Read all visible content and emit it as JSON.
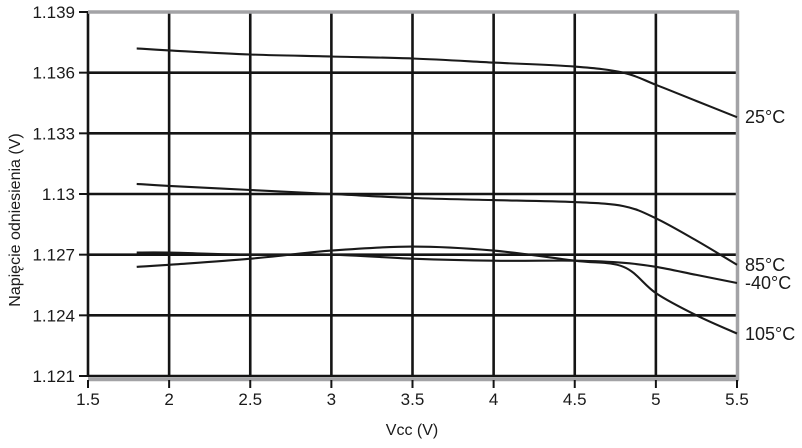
{
  "chart_data": {
    "type": "line",
    "title": "",
    "xlabel": "Vcc (V)",
    "ylabel": "Napięcie odniesienia (V)",
    "xlim": [
      1.5,
      5.5
    ],
    "ylim": [
      1.121,
      1.139
    ],
    "x_ticks": [
      1.5,
      2,
      2.5,
      3,
      3.5,
      4,
      4.5,
      5,
      5.5
    ],
    "x_tick_labels": [
      "1.5",
      "2",
      "2.5",
      "3",
      "3.5",
      "4",
      "4.5",
      "5",
      "5.5"
    ],
    "y_ticks": [
      1.121,
      1.124,
      1.127,
      1.13,
      1.133,
      1.136,
      1.139
    ],
    "y_tick_labels": [
      "1.121",
      "1.124",
      "1.127",
      "1.13",
      "1.133",
      "1.136",
      "1.139"
    ],
    "grid": true,
    "legend_position": "right-edge-labels",
    "x": [
      1.8,
      2.0,
      2.5,
      3.0,
      3.5,
      4.0,
      4.5,
      4.8,
      5.0,
      5.25,
      5.5
    ],
    "series": [
      {
        "name": "25°C",
        "values": [
          1.1372,
          1.1371,
          1.1369,
          1.1368,
          1.1367,
          1.1365,
          1.1363,
          1.136,
          1.1354,
          1.1346,
          1.1338
        ]
      },
      {
        "name": "85°C",
        "values": [
          1.1305,
          1.1304,
          1.1302,
          1.13,
          1.1298,
          1.1297,
          1.1296,
          1.1294,
          1.1288,
          1.1277,
          1.1265
        ]
      },
      {
        "name": "-40°C",
        "values": [
          1.1271,
          1.1271,
          1.127,
          1.127,
          1.1268,
          1.1267,
          1.1267,
          1.1266,
          1.1264,
          1.126,
          1.1256
        ]
      },
      {
        "name": "105°C",
        "values": [
          1.1264,
          1.1265,
          1.1268,
          1.1272,
          1.1274,
          1.1272,
          1.1267,
          1.1264,
          1.1251,
          1.124,
          1.1231
        ]
      }
    ],
    "colors": {
      "line": "#1a1a1a",
      "grid": "#141414",
      "frame": "#a3a3a6",
      "text": "#1a1a1a",
      "background": "#ffffff"
    }
  }
}
